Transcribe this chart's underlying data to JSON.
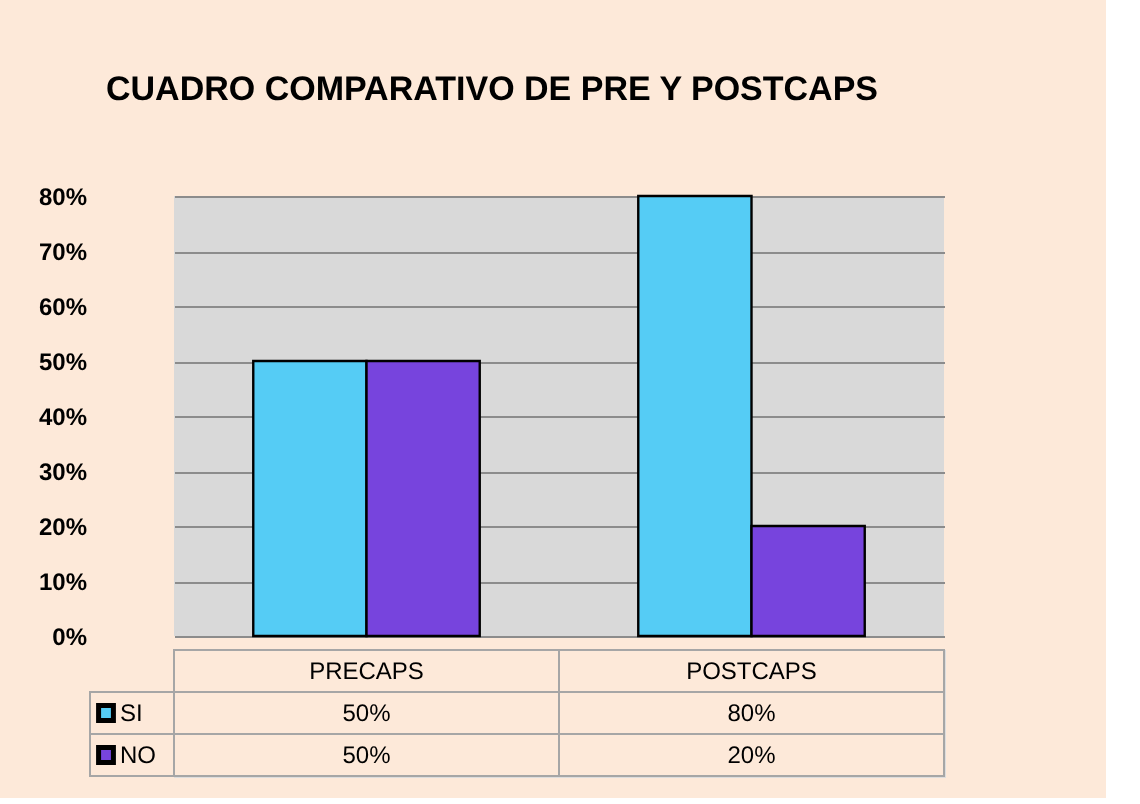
{
  "chart_data": {
    "type": "bar",
    "title": "CUADRO COMPARATIVO DE PRE Y POSTCAPS",
    "categories": [
      "PRECAPS",
      "POSTCAPS"
    ],
    "series": [
      {
        "name": "SI",
        "color": "#55ccf5",
        "values": [
          50,
          80
        ],
        "value_labels": [
          "50%",
          "80%"
        ]
      },
      {
        "name": "NO",
        "color": "#7744dd",
        "values": [
          50,
          20
        ],
        "value_labels": [
          "50%",
          "20%"
        ]
      }
    ],
    "ylim": [
      0,
      80
    ],
    "yticks": [
      {
        "value": 0,
        "label": "0%"
      },
      {
        "value": 10,
        "label": "10%"
      },
      {
        "value": 20,
        "label": "20%"
      },
      {
        "value": 30,
        "label": "30%"
      },
      {
        "value": 40,
        "label": "40%"
      },
      {
        "value": 50,
        "label": "50%"
      },
      {
        "value": 60,
        "label": "60%"
      },
      {
        "value": 70,
        "label": "70%"
      },
      {
        "value": 80,
        "label": "80%"
      }
    ],
    "grid": "y",
    "legend": "bottom"
  }
}
